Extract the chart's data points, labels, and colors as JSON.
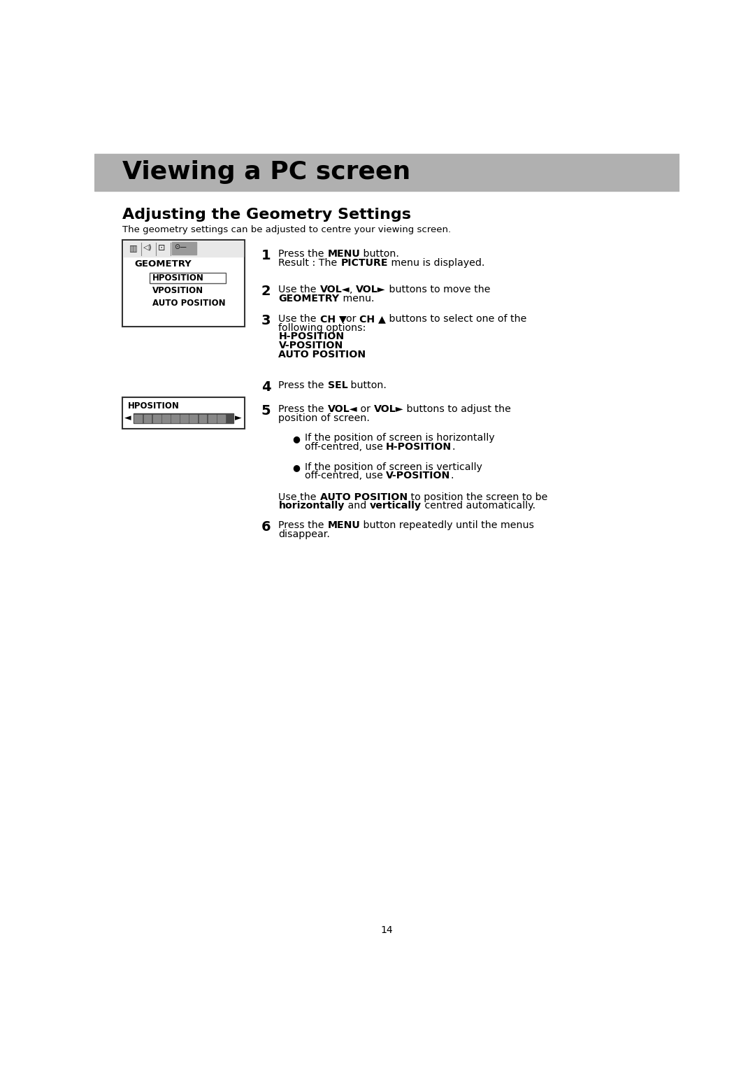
{
  "page_bg": "#ffffff",
  "header_bg": "#b0b0b0",
  "header_text": "Viewing a PC screen",
  "header_text_color": "#000000",
  "section_title": "Adjusting the Geometry Settings",
  "section_subtitle": "The geometry settings can be adjusted to centre your viewing screen.",
  "page_number": "14"
}
